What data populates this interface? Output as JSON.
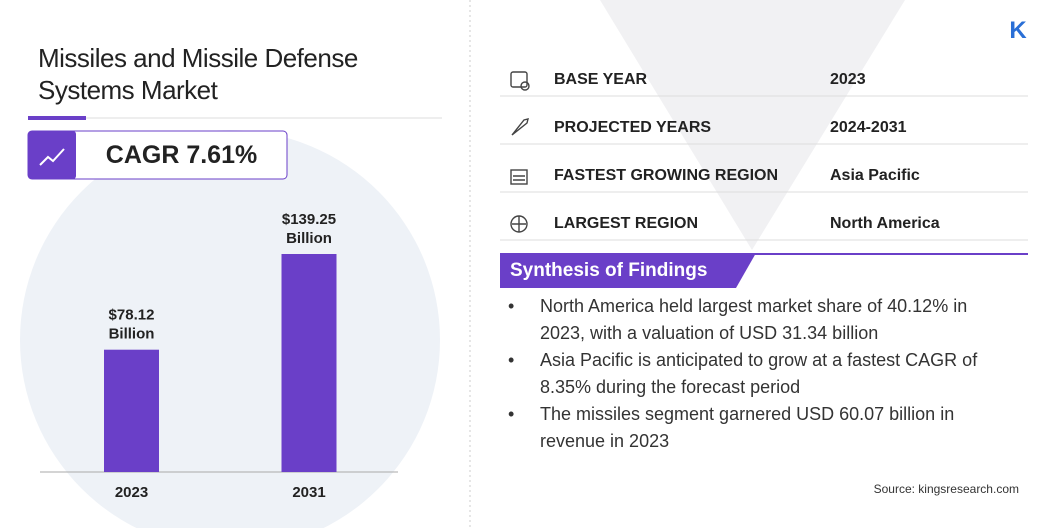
{
  "title": "Missiles and Missile Defense Systems Market",
  "cagr": "CAGR 7.61%",
  "chart_data": {
    "type": "bar",
    "categories": [
      "2023",
      "2031"
    ],
    "values": [
      78.12,
      139.25
    ],
    "value_labels": [
      "$78.12 Billion",
      "$139.25 Billion"
    ],
    "color": "#6a3fc8"
  },
  "facts": [
    {
      "label": "BASE YEAR",
      "value": "2023"
    },
    {
      "label": "PROJECTED YEARS",
      "value": "2024-2031"
    },
    {
      "label": "FASTEST GROWING REGION",
      "value": "Asia Pacific"
    },
    {
      "label": "LARGEST REGION",
      "value": "North America"
    }
  ],
  "findings": {
    "title": "Synthesis of Findings",
    "items": [
      "North America held largest market share of 40.12% in 2023, with a valuation of USD 31.34 billion",
      "Asia Pacific is anticipated to grow at a fastest CAGR of 8.35% during the forecast period",
      "The missiles segment garnered USD 60.07 billion in revenue in 2023"
    ]
  },
  "source": "Source:  kingsresearch.com"
}
